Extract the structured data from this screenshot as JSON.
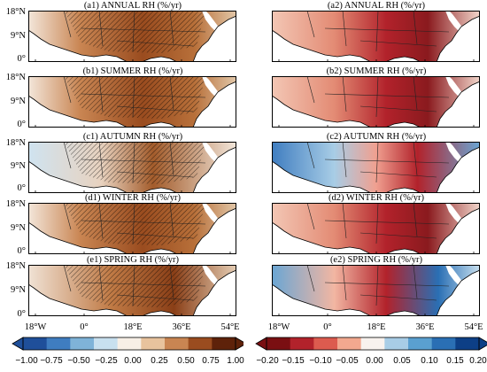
{
  "figure": {
    "left_titles": [
      "(a1) ANNUAL RH  (%/yr)",
      "(b1) SUMMER RH  (%/yr)",
      "(c1) AUTUMN RH  (%/yr)",
      "(d1) WINTER RH  (%/yr)",
      "(e1) SPRING RH  (%/yr)"
    ],
    "right_titles": [
      "(a2) ANNUAL RH  (%/yr)",
      "(b2) SUMMER RH  (%/yr)",
      "(c2) AUTUMN RH  (%/yr)",
      "(d2) WINTER RH  (%/yr)",
      "(e2) SPRING RH  (%/yr)"
    ],
    "lat_labels": [
      "18°N",
      "9°N",
      "0°"
    ],
    "lon_labels": [
      "18°W",
      "0°",
      "18°E",
      "36°E",
      "54°E"
    ],
    "left_colorbar": {
      "ticks": [
        "−1.00",
        "−0.75",
        "−0.50",
        "−0.25",
        "0.00",
        "0.25",
        "0.50",
        "0.75",
        "1.00"
      ],
      "colors": [
        "#1f4f9a",
        "#3f7dc0",
        "#7fb3d8",
        "#c8e0ef",
        "#f7efe6",
        "#e8c39d",
        "#c98552",
        "#9a4c1f",
        "#5e220a"
      ]
    },
    "right_colorbar": {
      "ticks": [
        "−0.20",
        "−0.15",
        "−0.10",
        "−0.05",
        "0.00",
        "0.05",
        "0.10",
        "0.15",
        "0.20"
      ],
      "colors": [
        "#7a0f12",
        "#b2222b",
        "#dc5b4f",
        "#f2a88f",
        "#f8f2ee",
        "#a8cde6",
        "#5aa0d0",
        "#2a6fb4",
        "#0d3f86"
      ]
    }
  }
}
